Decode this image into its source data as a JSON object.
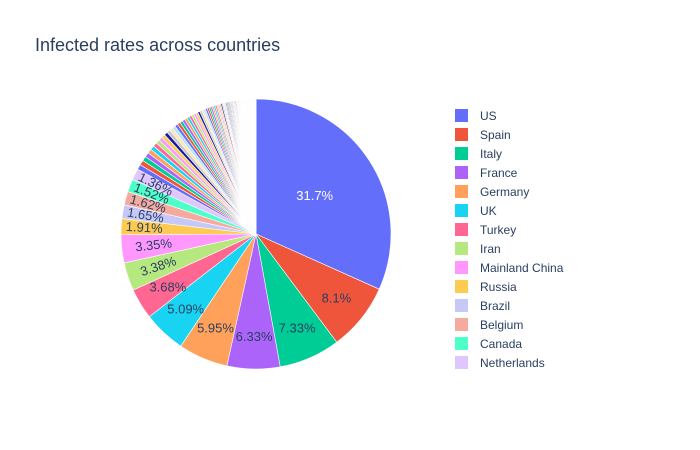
{
  "chart_data": {
    "type": "pie",
    "title": "Infected rates across countries",
    "labels": [
      "US",
      "Spain",
      "Italy",
      "France",
      "Germany",
      "UK",
      "Turkey",
      "Iran",
      "Mainland China",
      "Russia",
      "Brazil",
      "Belgium",
      "Canada",
      "Netherlands"
    ],
    "values": [
      31.7,
      8.1,
      7.33,
      6.33,
      5.95,
      5.09,
      3.68,
      3.38,
      3.35,
      1.91,
      1.65,
      1.62,
      1.52,
      1.36
    ],
    "value_labels": [
      "31.7%",
      "8.1%",
      "7.33%",
      "6.33%",
      "5.95%",
      "5.09%",
      "3.68%",
      "3.38%",
      "3.35%",
      "1.91%",
      "1.65%",
      "1.62%",
      "1.52%",
      "1.36%"
    ],
    "colors": [
      "#636efa",
      "#EF553B",
      "#00cc96",
      "#ab63fa",
      "#FFA15A",
      "#19d3f3",
      "#FF6692",
      "#B6E880",
      "#FF97FF",
      "#FECB52",
      "#c6c9f8",
      "#f5aa9d",
      "#4dffc8",
      "#e0c6ff"
    ],
    "tail_colors": [
      "#636efa",
      "#EF553B",
      "#00cc96",
      "#ab63fa",
      "#FFA15A",
      "#19d3f3",
      "#FF6692",
      "#B6E880",
      "#FF97FF",
      "#FECB52",
      "#1a1aa8",
      "#c8c8c8",
      "#ffe4b0",
      "#b0e0ff"
    ],
    "legend_position": "right",
    "direction": "clockwise",
    "start_angle": "top"
  }
}
